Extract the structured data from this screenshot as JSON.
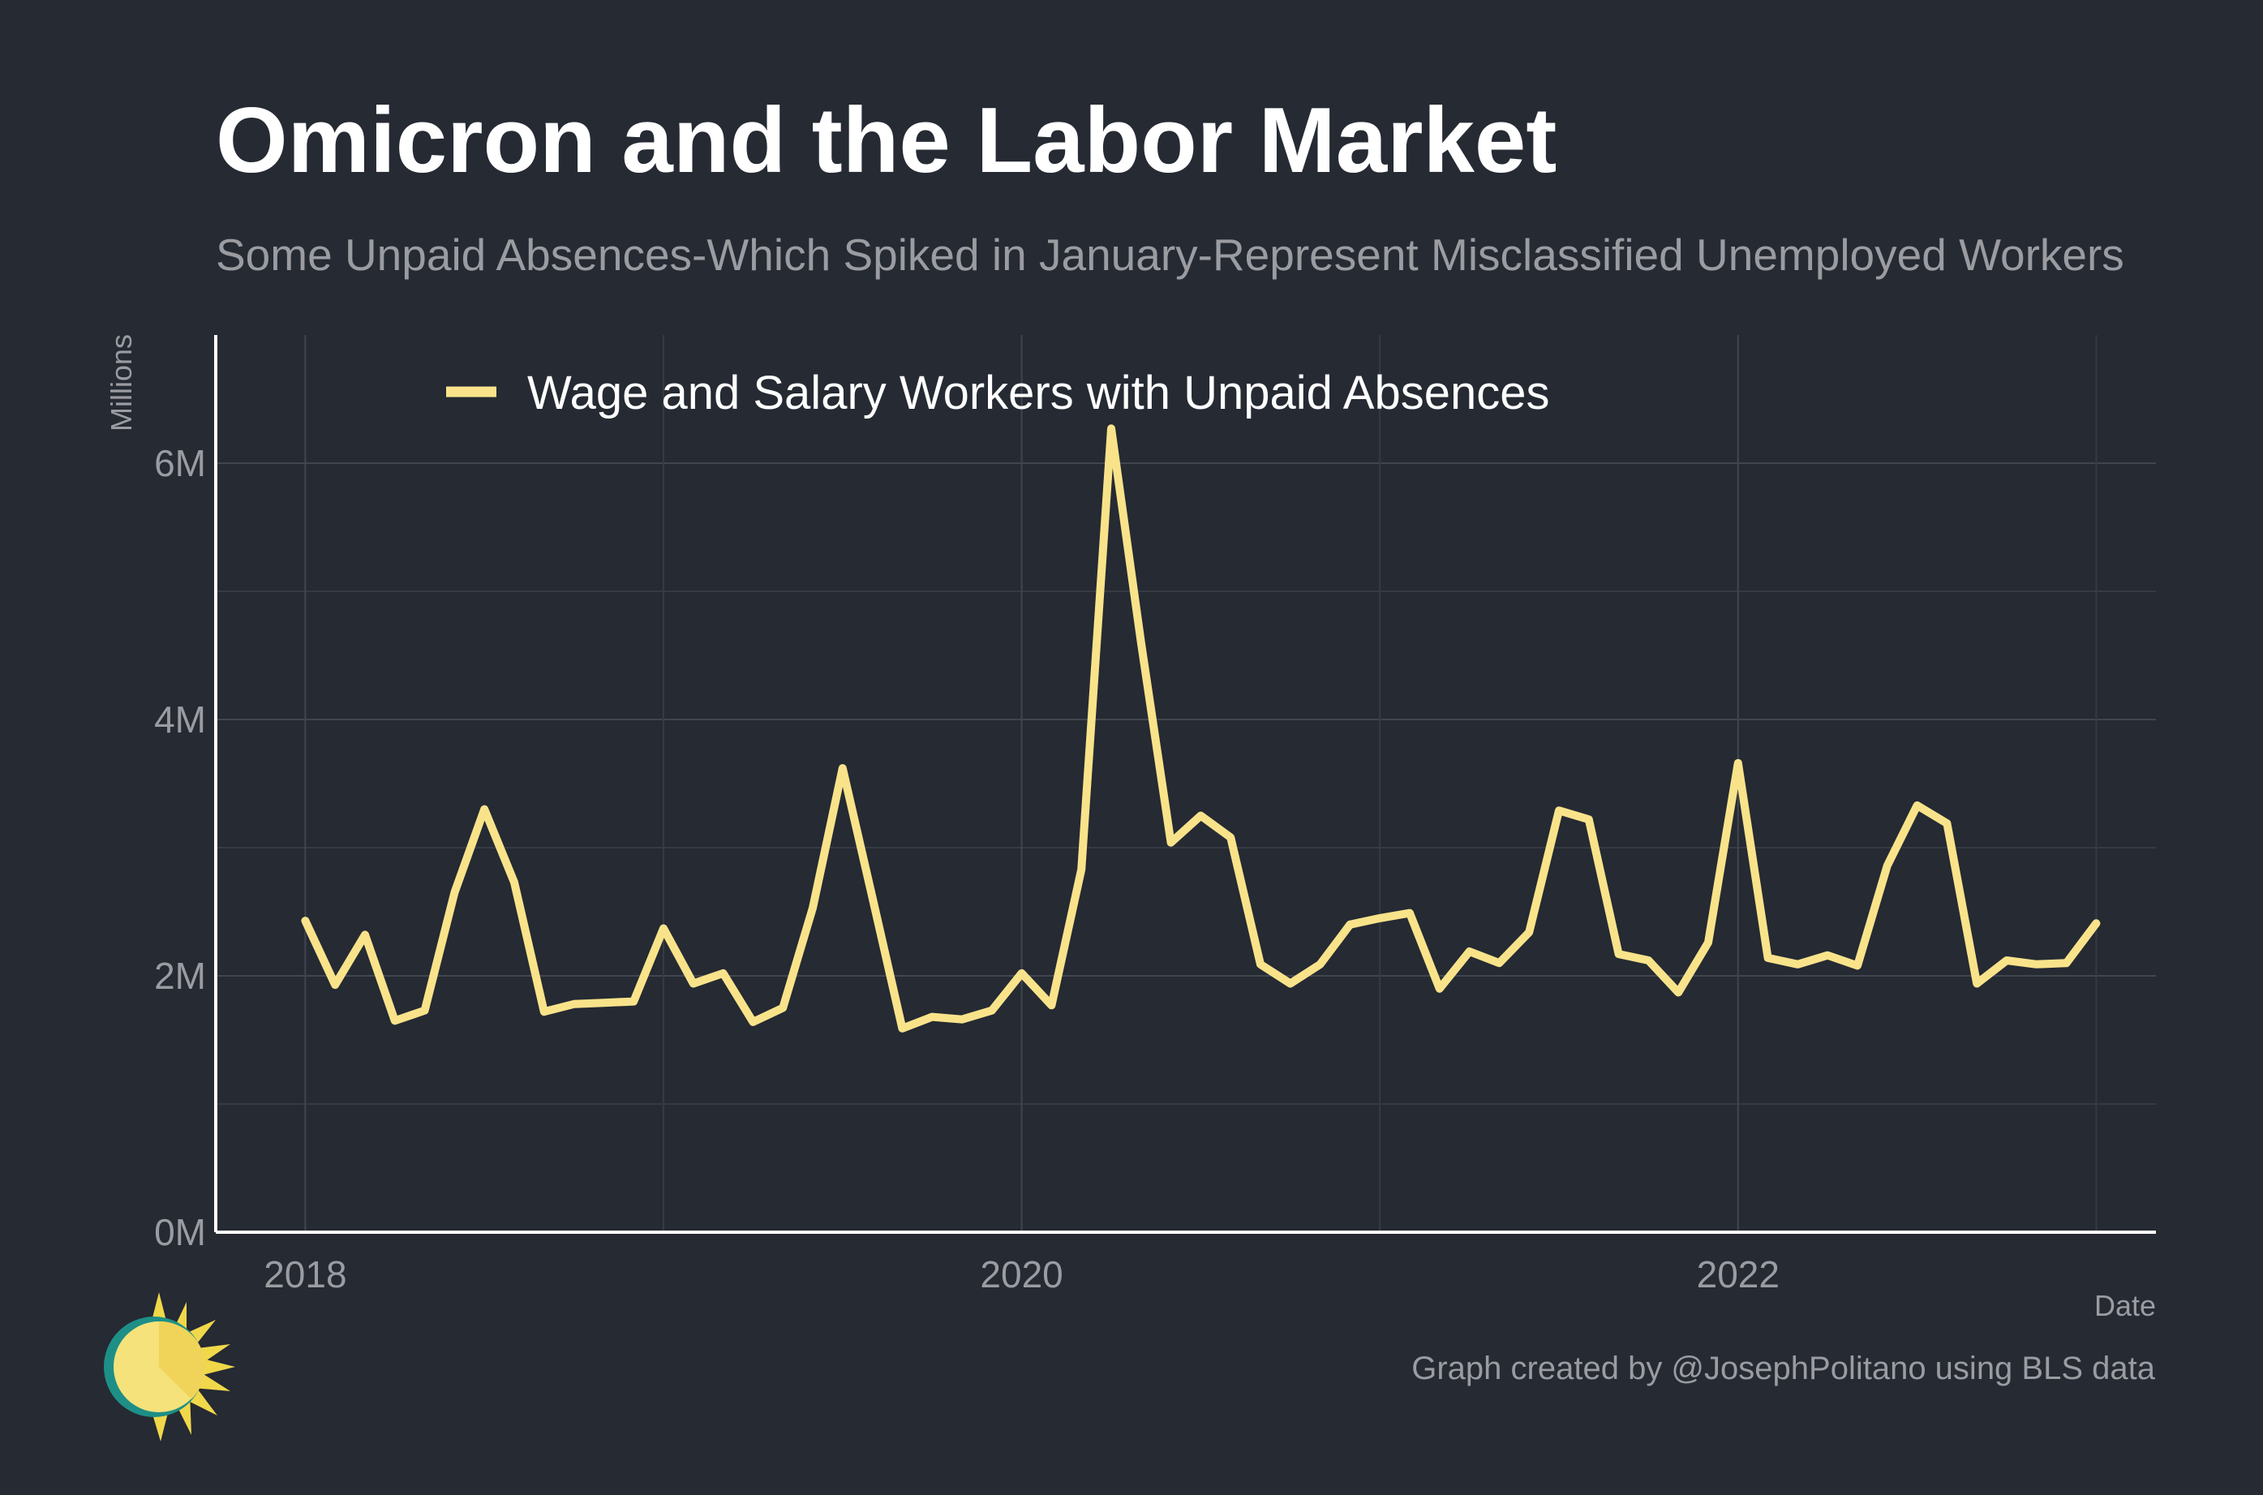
{
  "chart_data": {
    "type": "line",
    "title": "Omicron and the Labor Market",
    "subtitle": "Some Unpaid Absences-Which Spiked in January-Represent Misclassified Unemployed Workers",
    "xlabel": "Date",
    "ylabel": "Millions",
    "caption": "Graph created by @JosephPolitano using BLS data",
    "xlim": [
      "2017-10",
      "2023-03"
    ],
    "ylim": [
      0,
      7
    ],
    "x_ticks": [
      "2018",
      "2020",
      "2022"
    ],
    "y_ticks": [
      "0M",
      "2M",
      "4M",
      "6M"
    ],
    "y_tick_values": [
      0,
      2,
      4,
      6
    ],
    "grid": true,
    "legend_position": "top-left",
    "series": [
      {
        "name": "Wage and Salary Workers with Unpaid Absences",
        "color": "#f9e38a",
        "x": [
          "2018-01",
          "2018-02",
          "2018-03",
          "2018-04",
          "2018-05",
          "2018-06",
          "2018-07",
          "2018-08",
          "2018-09",
          "2018-10",
          "2018-11",
          "2018-12",
          "2019-01",
          "2019-02",
          "2019-03",
          "2019-04",
          "2019-05",
          "2019-06",
          "2019-07",
          "2019-08",
          "2019-09",
          "2019-10",
          "2019-11",
          "2019-12",
          "2020-01",
          "2020-02",
          "2020-03",
          "2020-04",
          "2020-05",
          "2020-06",
          "2020-07",
          "2020-08",
          "2020-09",
          "2020-10",
          "2020-11",
          "2020-12",
          "2021-01",
          "2021-02",
          "2021-03",
          "2021-04",
          "2021-05",
          "2021-06",
          "2021-07",
          "2021-08",
          "2021-09",
          "2021-10",
          "2021-11",
          "2021-12",
          "2022-01",
          "2022-02",
          "2022-03",
          "2022-04",
          "2022-05",
          "2022-06",
          "2022-07",
          "2022-08",
          "2022-09",
          "2022-10",
          "2022-11",
          "2022-12",
          "2023-01"
        ],
        "values": [
          2.43,
          1.93,
          2.32,
          1.65,
          1.73,
          2.65,
          3.3,
          2.73,
          1.72,
          1.78,
          1.79,
          1.8,
          2.37,
          1.94,
          2.02,
          1.64,
          1.75,
          2.53,
          3.62,
          2.61,
          1.59,
          1.68,
          1.66,
          1.73,
          2.02,
          1.77,
          2.83,
          6.27,
          4.6,
          3.04,
          3.25,
          3.08,
          2.09,
          1.94,
          2.09,
          2.4,
          2.45,
          2.49,
          1.9,
          2.19,
          2.1,
          2.34,
          3.29,
          3.22,
          2.17,
          2.12,
          1.87,
          2.26,
          3.66,
          2.14,
          2.09,
          2.16,
          2.08,
          2.86,
          3.33,
          3.19,
          1.94,
          2.12,
          2.09,
          2.1,
          2.41
        ]
      }
    ]
  },
  "logo": {
    "icon": "sun-logo-icon",
    "colors": [
      "#f6e27a",
      "#f0c93a",
      "#1e8f86"
    ]
  }
}
